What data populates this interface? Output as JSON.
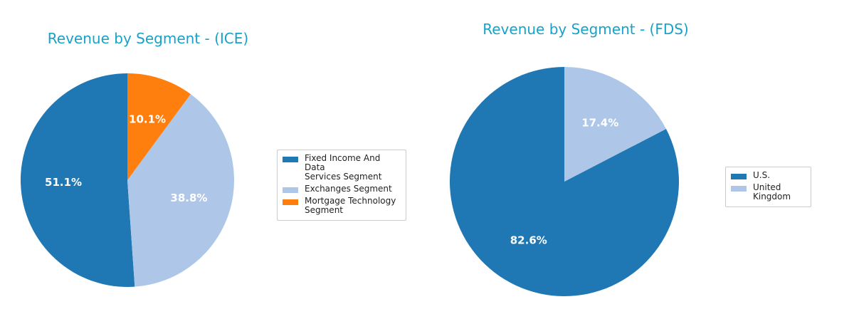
{
  "chart_data": [
    {
      "type": "pie",
      "title": "Revenue by Segment - (ICE)",
      "legend_position": "right",
      "slices": [
        {
          "label": "Fixed Income And Data\nServices Segment",
          "value": 51.1,
          "pct_label": "51.1%",
          "color": "#1f77b4"
        },
        {
          "label": "Exchanges Segment",
          "value": 38.8,
          "pct_label": "38.8%",
          "color": "#aec7e8"
        },
        {
          "label": "Mortgage Technology\nSegment",
          "value": 10.1,
          "pct_label": "10.1%",
          "color": "#ff7f0e"
        }
      ]
    },
    {
      "type": "pie",
      "title": "Revenue by Segment - (FDS)",
      "legend_position": "right",
      "slices": [
        {
          "label": "U.S.",
          "value": 82.6,
          "pct_label": "82.6%",
          "color": "#1f77b4"
        },
        {
          "label": "United Kingdom",
          "value": 17.4,
          "pct_label": "17.4%",
          "color": "#aec7e8"
        }
      ]
    }
  ]
}
